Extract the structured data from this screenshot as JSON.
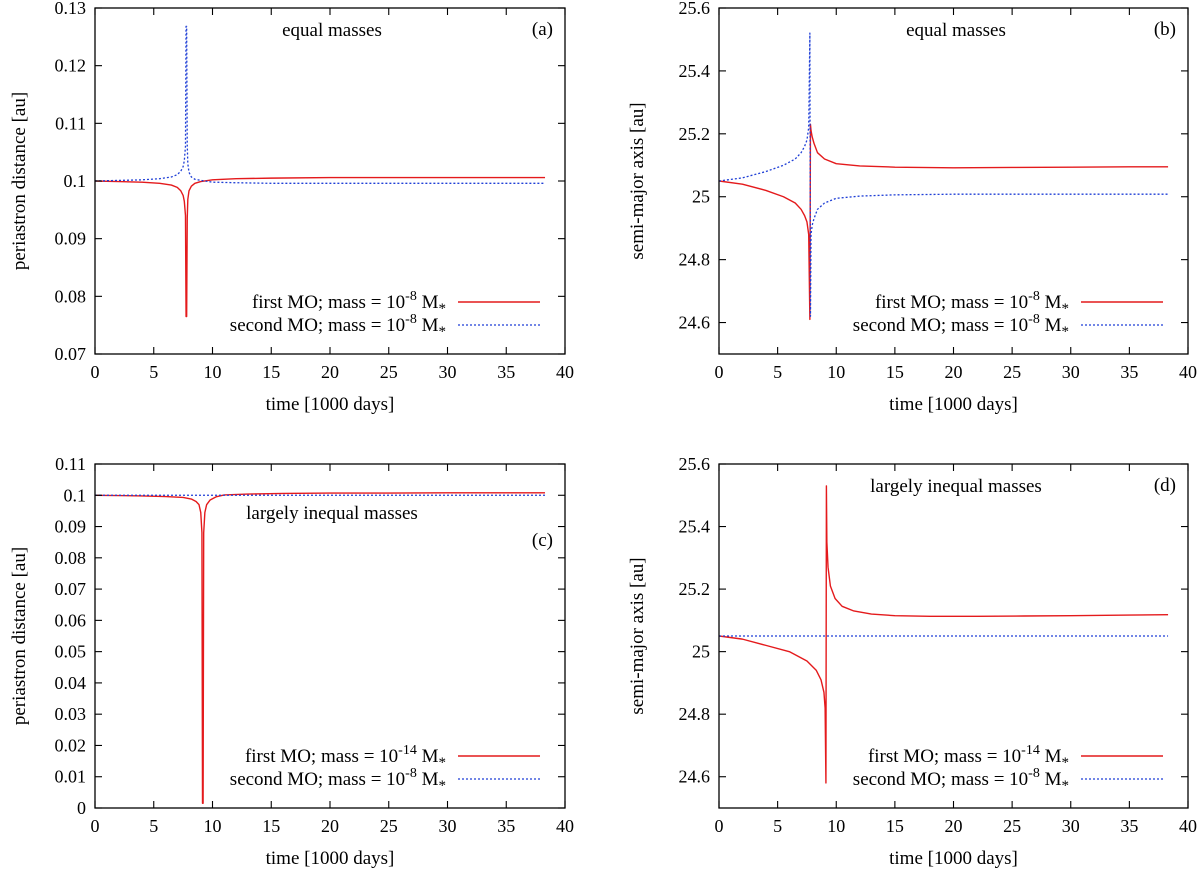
{
  "figure": {
    "colors": {
      "series_first": "#e41a1c",
      "series_second": "#1f3fd6",
      "axis": "#000000"
    }
  },
  "chart_data": [
    {
      "id": "a",
      "type": "line",
      "tag": "(a)",
      "title": "equal masses",
      "xlabel": "time [1000 days]",
      "ylabel": "periastron distance [au]",
      "xlim": [
        0,
        40
      ],
      "ylim": [
        0.07,
        0.13
      ],
      "xticks": [
        0,
        5,
        10,
        15,
        20,
        25,
        30,
        35,
        40
      ],
      "xtick_labels": [
        "0",
        "5",
        "10",
        "15",
        "20",
        "25",
        "30",
        "35",
        "40"
      ],
      "yticks": [
        0.07,
        0.08,
        0.09,
        0.1,
        0.11,
        0.12,
        0.13
      ],
      "ytick_labels": [
        "0.07",
        "0.08",
        "0.09",
        "0.1",
        "0.11",
        "0.12",
        "0.13"
      ],
      "grid": false,
      "legend_position": "bottom-right",
      "series": [
        {
          "name": "first MO; mass = 10-8 M*",
          "legend_prefix": "first MO; mass = 10",
          "legend_exp": "-8",
          "legend_suffix": " M",
          "legend_sub": "*",
          "style": "solid",
          "color": "#e41a1c",
          "x": [
            0,
            2,
            4,
            5.5,
            6.5,
            7.0,
            7.3,
            7.5,
            7.6,
            7.7,
            7.75,
            7.8,
            7.85,
            7.9,
            8.0,
            8.2,
            8.5,
            9,
            10,
            12,
            15,
            20,
            25,
            30,
            35,
            38.3
          ],
          "y": [
            0.1,
            0.0999,
            0.0998,
            0.0996,
            0.0993,
            0.0989,
            0.0983,
            0.0975,
            0.0965,
            0.094,
            0.0765,
            0.0765,
            0.0935,
            0.0968,
            0.0983,
            0.0991,
            0.0996,
            0.0999,
            0.1002,
            0.1004,
            0.1005,
            0.1006,
            0.1006,
            0.1006,
            0.1006,
            0.1006
          ]
        },
        {
          "name": "second MO; mass = 10-8 M*",
          "legend_prefix": "second MO; mass = 10",
          "legend_exp": "-8",
          "legend_suffix": " M",
          "legend_sub": "*",
          "style": "dotted",
          "color": "#1f3fd6",
          "x": [
            0,
            2,
            4,
            5.5,
            6.5,
            7.0,
            7.3,
            7.5,
            7.6,
            7.7,
            7.75,
            7.8,
            7.85,
            7.9,
            8.0,
            8.2,
            8.5,
            9,
            10,
            12,
            15,
            20,
            25,
            30,
            35,
            38.3
          ],
          "y": [
            0.1,
            0.1001,
            0.1002,
            0.1004,
            0.1007,
            0.1011,
            0.1017,
            0.1025,
            0.1035,
            0.106,
            0.1268,
            0.1268,
            0.1062,
            0.103,
            0.1015,
            0.1007,
            0.1003,
            0.1001,
            0.0998,
            0.0997,
            0.0996,
            0.0996,
            0.0996,
            0.0996,
            0.0996,
            0.0996
          ]
        }
      ]
    },
    {
      "id": "b",
      "type": "line",
      "tag": "(b)",
      "title": "equal masses",
      "xlabel": "time [1000 days]",
      "ylabel": "semi-major axis [au]",
      "xlim": [
        0,
        40
      ],
      "ylim": [
        24.5,
        25.6
      ],
      "xticks": [
        0,
        5,
        10,
        15,
        20,
        25,
        30,
        35,
        40
      ],
      "xtick_labels": [
        "0",
        "5",
        "10",
        "15",
        "20",
        "25",
        "30",
        "35",
        "40"
      ],
      "yticks": [
        24.6,
        24.8,
        25.0,
        25.2,
        25.4,
        25.6
      ],
      "ytick_labels": [
        "24.6",
        "24.8",
        "25",
        "25.2",
        "25.4",
        "25.6"
      ],
      "grid": false,
      "legend_position": "bottom-right",
      "series": [
        {
          "name": "first MO; mass = 10-8 M*",
          "legend_prefix": "first MO; mass = 10",
          "legend_exp": "-8",
          "legend_suffix": " M",
          "legend_sub": "*",
          "style": "solid",
          "color": "#e41a1c",
          "x": [
            0,
            2,
            4,
            5.5,
            6.5,
            7.0,
            7.3,
            7.5,
            7.65,
            7.75,
            7.8,
            7.85,
            7.95,
            8.1,
            8.4,
            9,
            10,
            12,
            15,
            20,
            25,
            30,
            35,
            38.3
          ],
          "y": [
            25.05,
            25.04,
            25.02,
            25.0,
            24.98,
            24.96,
            24.94,
            24.92,
            24.88,
            24.61,
            25.23,
            25.21,
            25.19,
            25.17,
            25.14,
            25.12,
            25.105,
            25.098,
            25.094,
            25.092,
            25.093,
            25.094,
            25.095,
            25.095
          ]
        },
        {
          "name": "second MO; mass = 10-8 M*",
          "legend_prefix": "second MO; mass = 10",
          "legend_exp": "-8",
          "legend_suffix": " M",
          "legend_sub": "*",
          "style": "dotted",
          "color": "#1f3fd6",
          "x": [
            0,
            2,
            4,
            5.5,
            6.5,
            7.0,
            7.3,
            7.5,
            7.65,
            7.75,
            7.8,
            7.85,
            7.95,
            8.1,
            8.4,
            9,
            10,
            12,
            15,
            20,
            25,
            30,
            35,
            38.3
          ],
          "y": [
            25.05,
            25.06,
            25.08,
            25.1,
            25.12,
            25.14,
            25.16,
            25.18,
            25.22,
            25.52,
            24.62,
            24.88,
            24.91,
            24.93,
            24.96,
            24.98,
            24.995,
            25.002,
            25.006,
            25.008,
            25.008,
            25.008,
            25.008,
            25.008
          ]
        }
      ]
    },
    {
      "id": "c",
      "type": "line",
      "tag": "(c)",
      "title": "largely inequal masses",
      "xlabel": "time [1000 days]",
      "ylabel": "periastron distance [au]",
      "xlim": [
        0,
        40
      ],
      "ylim": [
        0,
        0.11
      ],
      "xticks": [
        0,
        5,
        10,
        15,
        20,
        25,
        30,
        35,
        40
      ],
      "xtick_labels": [
        "0",
        "5",
        "10",
        "15",
        "20",
        "25",
        "30",
        "35",
        "40"
      ],
      "yticks": [
        0,
        0.01,
        0.02,
        0.03,
        0.04,
        0.05,
        0.06,
        0.07,
        0.08,
        0.09,
        0.1,
        0.11
      ],
      "ytick_labels": [
        "0",
        "0.01",
        "0.02",
        "0.03",
        "0.04",
        "0.05",
        "0.06",
        "0.07",
        "0.08",
        "0.09",
        "0.1",
        "0.11"
      ],
      "grid": false,
      "legend_position": "bottom-right",
      "series": [
        {
          "name": "first MO; mass = 10-14 M*",
          "legend_prefix": "first MO; mass = 10",
          "legend_exp": "-14",
          "legend_suffix": " M",
          "legend_sub": "*",
          "style": "solid",
          "color": "#e41a1c",
          "x": [
            0,
            2,
            4,
            6,
            7.5,
            8.2,
            8.6,
            8.85,
            9.0,
            9.1,
            9.15,
            9.2,
            9.25,
            9.35,
            9.5,
            9.8,
            10.3,
            11,
            13,
            16,
            20,
            25,
            30,
            35,
            38.3
          ],
          "y": [
            0.1,
            0.0999,
            0.0998,
            0.0996,
            0.0993,
            0.0988,
            0.098,
            0.097,
            0.0945,
            0.088,
            0.0015,
            0.0015,
            0.088,
            0.0945,
            0.097,
            0.0985,
            0.0995,
            0.1001,
            0.1004,
            0.1006,
            0.1007,
            0.1007,
            0.1008,
            0.1008,
            0.1008
          ]
        },
        {
          "name": "second MO; mass = 10-8 M*",
          "legend_prefix": "second MO; mass = 10",
          "legend_exp": "-8",
          "legend_suffix": " M",
          "legend_sub": "*",
          "style": "dotted",
          "color": "#1f3fd6",
          "x": [
            0,
            38.3
          ],
          "y": [
            0.1,
            0.1
          ]
        }
      ]
    },
    {
      "id": "d",
      "type": "line",
      "tag": "(d)",
      "title": "largely inequal masses",
      "xlabel": "time [1000 days]",
      "ylabel": "semi-major axis [au]",
      "xlim": [
        0,
        40
      ],
      "ylim": [
        24.5,
        25.6
      ],
      "xticks": [
        0,
        5,
        10,
        15,
        20,
        25,
        30,
        35,
        40
      ],
      "xtick_labels": [
        "0",
        "5",
        "10",
        "15",
        "20",
        "25",
        "30",
        "35",
        "40"
      ],
      "yticks": [
        24.6,
        24.8,
        25.0,
        25.2,
        25.4,
        25.6
      ],
      "ytick_labels": [
        "24.6",
        "24.8",
        "25",
        "25.2",
        "25.4",
        "25.6"
      ],
      "grid": false,
      "legend_position": "bottom-right",
      "series": [
        {
          "name": "first MO; mass = 10-14 M*",
          "legend_prefix": "first MO; mass = 10",
          "legend_exp": "-14",
          "legend_suffix": " M",
          "legend_sub": "*",
          "style": "solid",
          "color": "#e41a1c",
          "x": [
            0,
            2,
            4,
            6,
            7.5,
            8.3,
            8.7,
            8.95,
            9.05,
            9.12,
            9.16,
            9.2,
            9.3,
            9.5,
            9.9,
            10.5,
            11.5,
            13,
            15,
            18,
            22,
            26,
            30,
            35,
            38.3
          ],
          "y": [
            25.05,
            25.04,
            25.02,
            25.0,
            24.97,
            24.94,
            24.91,
            24.87,
            24.82,
            24.58,
            25.53,
            25.35,
            25.27,
            25.21,
            25.17,
            25.145,
            25.13,
            25.12,
            25.115,
            25.113,
            25.113,
            25.114,
            25.115,
            25.117,
            25.118
          ]
        },
        {
          "name": "second MO; mass = 10-8 M*",
          "legend_prefix": "second MO; mass = 10",
          "legend_exp": "-8",
          "legend_suffix": " M",
          "legend_sub": "*",
          "style": "dotted",
          "color": "#1f3fd6",
          "x": [
            0,
            38.3
          ],
          "y": [
            25.05,
            25.05
          ]
        }
      ]
    }
  ]
}
